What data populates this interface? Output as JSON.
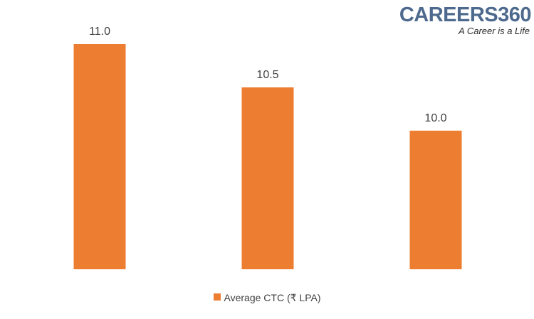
{
  "logo": {
    "name": "CAREERS360",
    "tagline": "A Career is a Life",
    "color": "#4d6a8e"
  },
  "chart_data": {
    "type": "bar",
    "categories": [
      "",
      "",
      ""
    ],
    "series": [
      {
        "name": "Average CTC (₹ LPA)",
        "values": [
          11.0,
          10.5,
          10.0
        ],
        "data_labels": [
          "11.0",
          "10.5",
          "10.0"
        ],
        "color": "#ed7d31"
      }
    ],
    "title": "",
    "xlabel": "",
    "ylabel": "",
    "ylim": [
      8.4,
      11.0
    ],
    "grid": false,
    "legend": "bottom-center"
  }
}
